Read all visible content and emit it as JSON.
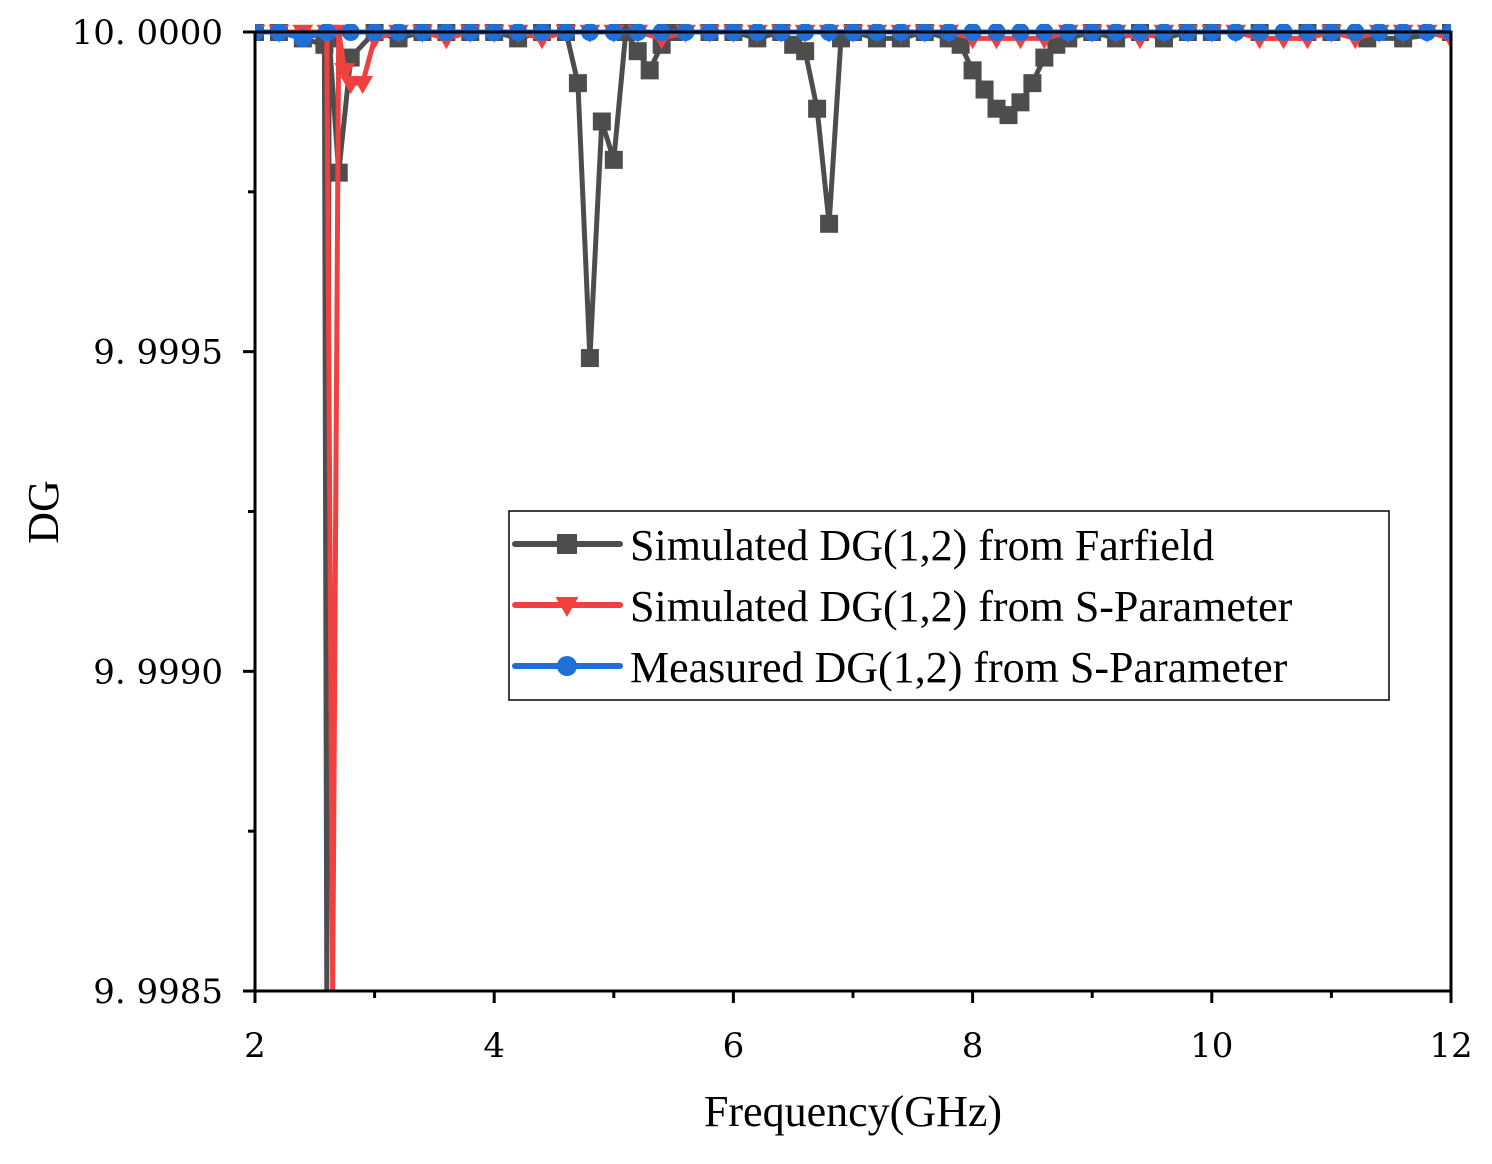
{
  "chart_data": {
    "type": "line",
    "title": "",
    "xlabel": "Frequency(GHz)",
    "ylabel": "DG",
    "xlim": [
      2,
      12
    ],
    "ylim": [
      9.9985,
      10.0
    ],
    "x_ticks": [
      {
        "value": 2,
        "label": "2"
      },
      {
        "value": 4,
        "label": "4"
      },
      {
        "value": 6,
        "label": "6"
      },
      {
        "value": 8,
        "label": "8"
      },
      {
        "value": 10,
        "label": "10"
      },
      {
        "value": 12,
        "label": "12"
      }
    ],
    "y_ticks": [
      {
        "value": 10.0,
        "label": "10. 0000"
      },
      {
        "value": 9.9995,
        "label": "9. 9995"
      },
      {
        "value": 9.999,
        "label": "9. 9990"
      },
      {
        "value": 9.9985,
        "label": "9. 9985"
      }
    ],
    "grid": false,
    "legend_position": "center-right",
    "series": [
      {
        "name": "Simulated DG(1,2) from Farfield",
        "color": "#4d4d4d",
        "marker": "square",
        "x": [
          2,
          2.2,
          2.4,
          2.58,
          2.6,
          2.62,
          2.7,
          2.8,
          3.0,
          3.2,
          3.4,
          3.6,
          3.8,
          4.0,
          4.2,
          4.4,
          4.6,
          4.7,
          4.8,
          4.9,
          5.0,
          5.1,
          5.2,
          5.3,
          5.4,
          5.5,
          5.8,
          6.0,
          6.2,
          6.4,
          6.5,
          6.6,
          6.7,
          6.8,
          6.9,
          7.0,
          7.2,
          7.4,
          7.6,
          7.8,
          7.9,
          8.0,
          8.1,
          8.2,
          8.3,
          8.4,
          8.5,
          8.6,
          8.7,
          8.8,
          9.0,
          9.2,
          9.4,
          9.6,
          9.8,
          10.0,
          10.4,
          10.8,
          11.0,
          11.3,
          11.6,
          12.0
        ],
        "y": [
          10.0,
          10.0,
          9.99999,
          9.99998,
          9.9985,
          9.99999,
          9.99978,
          9.99996,
          10.0,
          9.99999,
          10.0,
          10.0,
          10.0,
          10.0,
          9.99999,
          10.0,
          10.0,
          9.99992,
          9.99949,
          9.99986,
          9.9998,
          10.0,
          9.99997,
          9.99994,
          9.99998,
          10.0,
          10.0,
          10.0,
          9.99999,
          10.0,
          9.99998,
          9.99997,
          9.99988,
          9.9997,
          9.99999,
          10.0,
          9.99999,
          9.99999,
          10.0,
          9.99999,
          9.99998,
          9.99994,
          9.99991,
          9.99988,
          9.99987,
          9.99989,
          9.99992,
          9.99996,
          9.99998,
          9.99999,
          10.0,
          9.99999,
          10.0,
          9.99999,
          10.0,
          10.0,
          10.0,
          10.0,
          10.0,
          9.99999,
          9.99999,
          10.0
        ]
      },
      {
        "name": "Simulated DG(1,2) from S-Parameter",
        "color": "#f0403f",
        "marker": "triangle-down",
        "x": [
          2,
          2.2,
          2.4,
          2.6,
          2.65,
          2.7,
          2.75,
          2.8,
          2.9,
          3.0,
          3.2,
          3.4,
          3.6,
          3.8,
          4.0,
          4.2,
          4.4,
          4.6,
          4.8,
          5.0,
          5.2,
          5.4,
          5.6,
          5.8,
          6.0,
          6.2,
          6.4,
          6.6,
          6.8,
          7.0,
          7.2,
          7.4,
          7.6,
          7.8,
          8.0,
          8.2,
          8.4,
          8.6,
          8.8,
          9.0,
          9.2,
          9.4,
          9.6,
          9.8,
          10.0,
          10.2,
          10.4,
          10.6,
          10.8,
          11.0,
          11.2,
          11.4,
          11.6,
          11.8,
          12.0
        ],
        "y": [
          10.0,
          10.0,
          10.0,
          10.0,
          9.9985,
          10.0,
          9.99994,
          9.99992,
          9.99992,
          9.99999,
          10.0,
          10.0,
          9.99999,
          10.0,
          10.0,
          10.0,
          9.99999,
          10.0,
          10.0,
          10.0,
          10.0,
          9.99999,
          10.0,
          10.0,
          10.0,
          10.0,
          10.0,
          10.0,
          10.0,
          10.0,
          10.0,
          10.0,
          10.0,
          10.0,
          9.99999,
          9.99999,
          9.99999,
          9.99999,
          10.0,
          10.0,
          10.0,
          9.99999,
          10.0,
          10.0,
          10.0,
          10.0,
          9.99999,
          9.99999,
          9.99999,
          10.0,
          9.99999,
          10.0,
          10.0,
          10.0,
          9.99999
        ]
      },
      {
        "name": "Measured DG(1,2) from S-Parameter",
        "color": "#1f6fd9",
        "marker": "circle",
        "x": [
          2.0,
          2.2,
          2.4,
          2.6,
          2.8,
          3.0,
          3.2,
          3.4,
          3.6,
          3.8,
          4.0,
          4.2,
          4.4,
          4.6,
          4.8,
          5.0,
          5.2,
          5.4,
          5.6,
          5.8,
          6.0,
          6.2,
          6.4,
          6.6,
          6.8,
          7.0,
          7.2,
          7.4,
          7.6,
          7.8,
          8.0,
          8.2,
          8.4,
          8.6,
          8.8,
          9.0,
          9.2,
          9.4,
          9.6,
          9.8,
          10.0,
          10.2,
          10.4,
          10.6,
          10.8,
          11.0,
          11.2,
          11.4,
          11.6,
          11.8,
          12.0
        ],
        "y": [
          10.0,
          10.0,
          9.99999,
          10.0,
          10.0,
          10.0,
          10.0,
          10.0,
          10.0,
          10.0,
          10.0,
          10.0,
          10.0,
          10.0,
          10.0,
          10.0,
          10.0,
          10.0,
          10.0,
          10.0,
          10.0,
          10.0,
          10.0,
          10.0,
          10.0,
          10.0,
          10.0,
          10.0,
          10.0,
          10.0,
          10.0,
          10.0,
          10.0,
          10.0,
          10.0,
          10.0,
          10.0,
          10.0,
          10.0,
          10.0,
          10.0,
          10.0,
          10.0,
          10.0,
          10.0,
          10.0,
          10.0,
          10.0,
          10.0,
          10.0,
          10.0
        ]
      }
    ]
  }
}
